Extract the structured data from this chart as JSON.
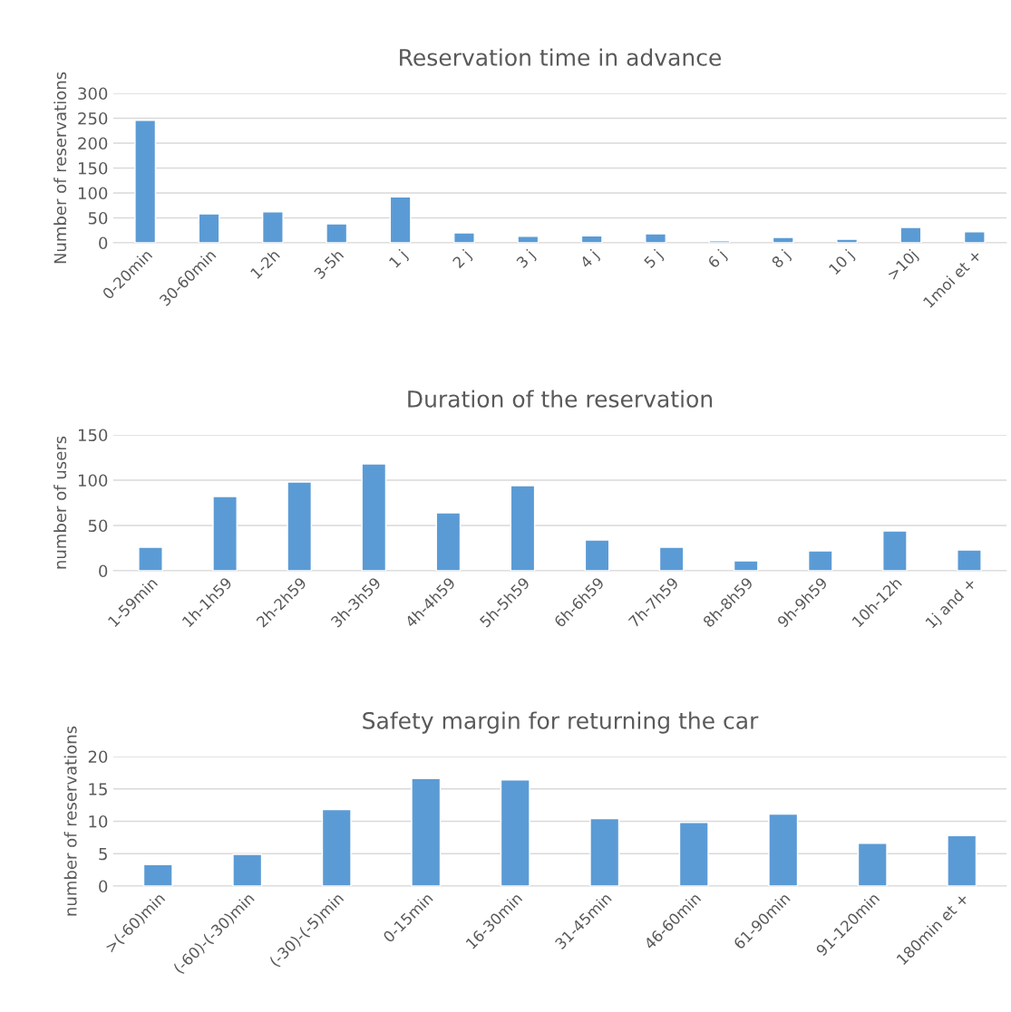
{
  "chart_data": [
    {
      "type": "bar",
      "title": "Reservation time in advance",
      "ylabel": "Number of reservations",
      "categories": [
        "0-20min",
        "30-60min",
        "1-2h",
        "3-5h",
        "1 j",
        "2 j",
        "3 j",
        "4 j",
        "5 j",
        "6 j",
        "8 j",
        "10 j",
        ">10j",
        "1moi et +"
      ],
      "values": [
        246,
        58,
        62,
        38,
        92,
        20,
        13,
        14,
        18,
        4,
        11,
        7,
        31,
        22
      ],
      "color": "#5b9bd5",
      "ylim": [
        0,
        300
      ],
      "yticks": [
        0,
        50,
        100,
        150,
        200,
        250,
        300
      ],
      "grid": "y"
    },
    {
      "type": "bar",
      "title": "Duration of the reservation",
      "ylabel": "number of users",
      "categories": [
        "1-59min",
        "1h-1h59",
        "2h-2h59",
        "3h-3h59",
        "4h-4h59",
        "5h-5h59",
        "6h-6h59",
        "7h-7h59",
        "8h-8h59",
        "9h-9h59",
        "10h-12h",
        "1j and +"
      ],
      "values": [
        26,
        82,
        98,
        118,
        64,
        94,
        34,
        26,
        11,
        22,
        44,
        23
      ],
      "color": "#5b9bd5",
      "ylim": [
        0,
        150
      ],
      "yticks": [
        0,
        50,
        100,
        150
      ],
      "grid": "y"
    },
    {
      "type": "bar",
      "title": "Safety margin for returning the car",
      "ylabel": "number of reservations",
      "categories": [
        ">(-60)min",
        "(-60)-(-30)min",
        "(-30)-(-5)min",
        "0-15min",
        "16-30min",
        "31-45min",
        "46-60min",
        "61-90min",
        "91-120min",
        "180min et +"
      ],
      "values": [
        3.3,
        4.9,
        11.8,
        16.6,
        16.4,
        10.4,
        9.8,
        11.1,
        6.6,
        7.8
      ],
      "color": "#5b9bd5",
      "ylim": [
        0,
        20
      ],
      "yticks": [
        0,
        5,
        10,
        15,
        20
      ],
      "grid": "y"
    }
  ]
}
